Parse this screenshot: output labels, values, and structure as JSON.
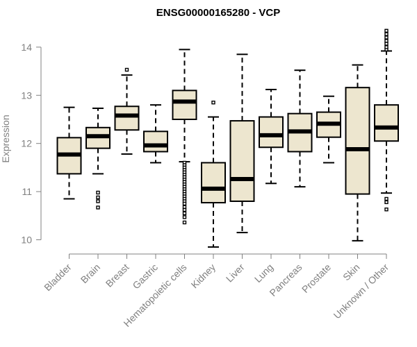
{
  "chart_data": {
    "type": "boxplot",
    "title": "ENSG00000165280 - VCP",
    "xlabel": "",
    "ylabel": "Expression",
    "ylim": [
      9.8,
      14.5
    ],
    "yticks": [
      10,
      11,
      12,
      13,
      14
    ],
    "ytick_labels": [
      "10",
      "11",
      "12",
      "13",
      "14"
    ],
    "box_fill": "#ede6cf",
    "stroke": "#000000",
    "outlier_color": "#000000",
    "axis_color": "#808080",
    "categories": [
      "Bladder",
      "Brain",
      "Breast",
      "Gastric",
      "Hematopoietic cells",
      "Kidney",
      "Liver",
      "Lung",
      "Pancreas",
      "Prostate",
      "Skin",
      "Unknown / Other"
    ],
    "series": [
      {
        "name": "Bladder",
        "whisker_low": 10.85,
        "q1": 11.37,
        "median": 11.77,
        "q3": 12.12,
        "whisker_high": 12.75,
        "outliers": []
      },
      {
        "name": "Brain",
        "whisker_low": 11.37,
        "q1": 11.9,
        "median": 12.15,
        "q3": 12.33,
        "whisker_high": 12.73,
        "outliers": [
          10.98,
          10.88,
          10.8,
          10.67
        ]
      },
      {
        "name": "Breast",
        "whisker_low": 11.78,
        "q1": 12.28,
        "median": 12.58,
        "q3": 12.77,
        "whisker_high": 13.42,
        "outliers": [
          13.53
        ]
      },
      {
        "name": "Gastric",
        "whisker_low": 11.6,
        "q1": 11.83,
        "median": 11.96,
        "q3": 12.25,
        "whisker_high": 12.8,
        "outliers": []
      },
      {
        "name": "Hematopoietic cells",
        "whisker_low": 11.62,
        "q1": 12.5,
        "median": 12.87,
        "q3": 13.1,
        "whisker_high": 13.95,
        "outliers": [
          11.6,
          11.55,
          11.5,
          11.45,
          11.4,
          11.35,
          11.3,
          11.25,
          11.2,
          11.15,
          11.1,
          11.05,
          11.0,
          10.95,
          10.9,
          10.85,
          10.8,
          10.75,
          10.68,
          10.62,
          10.55,
          10.47,
          10.36
        ]
      },
      {
        "name": "Kidney",
        "whisker_low": 9.85,
        "q1": 10.77,
        "median": 11.06,
        "q3": 11.6,
        "whisker_high": 12.55,
        "outliers": [
          12.85
        ]
      },
      {
        "name": "Liver",
        "whisker_low": 10.15,
        "q1": 10.8,
        "median": 11.26,
        "q3": 12.47,
        "whisker_high": 13.85,
        "outliers": []
      },
      {
        "name": "Lung",
        "whisker_low": 11.17,
        "q1": 11.92,
        "median": 12.17,
        "q3": 12.55,
        "whisker_high": 13.12,
        "outliers": []
      },
      {
        "name": "Pancreas",
        "whisker_low": 11.1,
        "q1": 11.83,
        "median": 12.25,
        "q3": 12.62,
        "whisker_high": 13.52,
        "outliers": []
      },
      {
        "name": "Prostate",
        "whisker_low": 11.6,
        "q1": 12.13,
        "median": 12.41,
        "q3": 12.65,
        "whisker_high": 12.98,
        "outliers": []
      },
      {
        "name": "Skin",
        "whisker_low": 9.98,
        "q1": 10.95,
        "median": 11.88,
        "q3": 13.16,
        "whisker_high": 13.63,
        "outliers": []
      },
      {
        "name": "Unknown / Other",
        "whisker_low": 10.97,
        "q1": 12.05,
        "median": 12.33,
        "q3": 12.8,
        "whisker_high": 13.92,
        "outliers": [
          10.85,
          10.78,
          10.63,
          13.95,
          14.0,
          14.07,
          14.13,
          14.2,
          14.27,
          14.34
        ]
      }
    ]
  }
}
